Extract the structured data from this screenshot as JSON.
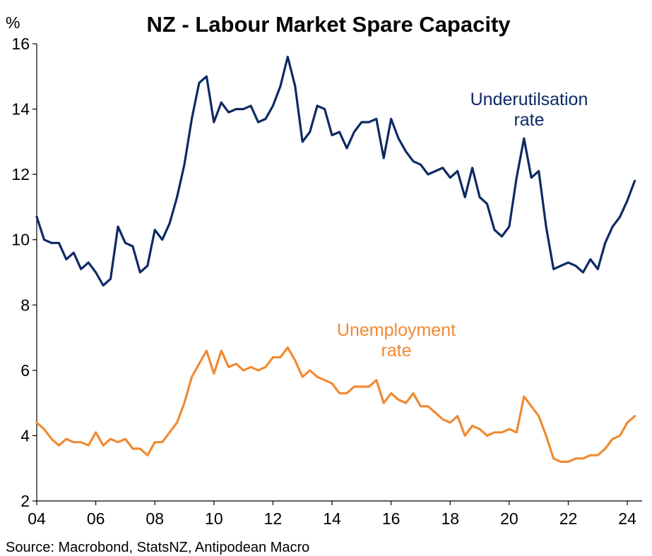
{
  "chart_data": {
    "type": "line",
    "title": "NZ - Labour Market Spare Capacity",
    "y_unit": "%",
    "ylim": [
      2,
      16
    ],
    "y_ticks": [
      2,
      4,
      6,
      8,
      10,
      12,
      14,
      16
    ],
    "x_ticks": [
      {
        "value": 2004,
        "label": "04"
      },
      {
        "value": 2006,
        "label": "06"
      },
      {
        "value": 2008,
        "label": "08"
      },
      {
        "value": 2010,
        "label": "10"
      },
      {
        "value": 2012,
        "label": "12"
      },
      {
        "value": 2014,
        "label": "14"
      },
      {
        "value": 2016,
        "label": "16"
      },
      {
        "value": 2018,
        "label": "18"
      },
      {
        "value": 2020,
        "label": "20"
      },
      {
        "value": 2022,
        "label": "22"
      },
      {
        "value": 2024,
        "label": "24"
      }
    ],
    "xlim": [
      2004,
      2024.5
    ],
    "grid": false,
    "x_start": 2004.0,
    "x_step": 0.25,
    "series": [
      {
        "name": "Underutilsation rate",
        "label_lines": [
          "Underutilsation",
          "rate"
        ],
        "color": "#0d2a63",
        "values": [
          10.7,
          10.0,
          9.9,
          9.9,
          9.4,
          9.6,
          9.1,
          9.3,
          9.0,
          8.6,
          8.8,
          10.4,
          9.9,
          9.8,
          9.0,
          9.2,
          10.3,
          10.0,
          10.5,
          11.3,
          12.3,
          13.7,
          14.8,
          15.0,
          13.6,
          14.2,
          13.9,
          14.0,
          14.0,
          14.1,
          13.6,
          13.7,
          14.1,
          14.7,
          15.6,
          14.7,
          13.0,
          13.3,
          14.1,
          14.0,
          13.2,
          13.3,
          12.8,
          13.3,
          13.6,
          13.6,
          13.7,
          12.5,
          13.7,
          13.1,
          12.7,
          12.4,
          12.3,
          12.0,
          12.1,
          12.2,
          11.9,
          12.1,
          11.3,
          12.2,
          11.3,
          11.1,
          10.3,
          10.1,
          10.4,
          11.9,
          13.1,
          11.9,
          12.1,
          10.4,
          9.1,
          9.2,
          9.3,
          9.2,
          9.0,
          9.4,
          9.1,
          9.9,
          10.4,
          10.7,
          11.2,
          11.8
        ]
      },
      {
        "name": "Unemployment rate",
        "label_lines": [
          "Unemployment",
          "rate"
        ],
        "color": "#f08a33",
        "values": [
          4.4,
          4.2,
          3.9,
          3.7,
          3.9,
          3.8,
          3.8,
          3.7,
          4.1,
          3.7,
          3.9,
          3.8,
          3.9,
          3.6,
          3.6,
          3.4,
          3.8,
          3.8,
          4.1,
          4.4,
          5.0,
          5.8,
          6.2,
          6.6,
          5.9,
          6.6,
          6.1,
          6.2,
          6.0,
          6.1,
          6.0,
          6.1,
          6.4,
          6.4,
          6.7,
          6.3,
          5.8,
          6.0,
          5.8,
          5.7,
          5.6,
          5.3,
          5.3,
          5.5,
          5.5,
          5.5,
          5.7,
          5.0,
          5.3,
          5.1,
          5.0,
          5.3,
          4.9,
          4.9,
          4.7,
          4.5,
          4.4,
          4.6,
          4.0,
          4.3,
          4.2,
          4.0,
          4.1,
          4.1,
          4.2,
          4.1,
          5.2,
          4.9,
          4.6,
          4.0,
          3.3,
          3.2,
          3.2,
          3.3,
          3.3,
          3.4,
          3.4,
          3.6,
          3.9,
          4.0,
          4.4,
          4.6
        ]
      }
    ],
    "source": "Source: Macrobond, StatsNZ, Antipodean Macro"
  }
}
